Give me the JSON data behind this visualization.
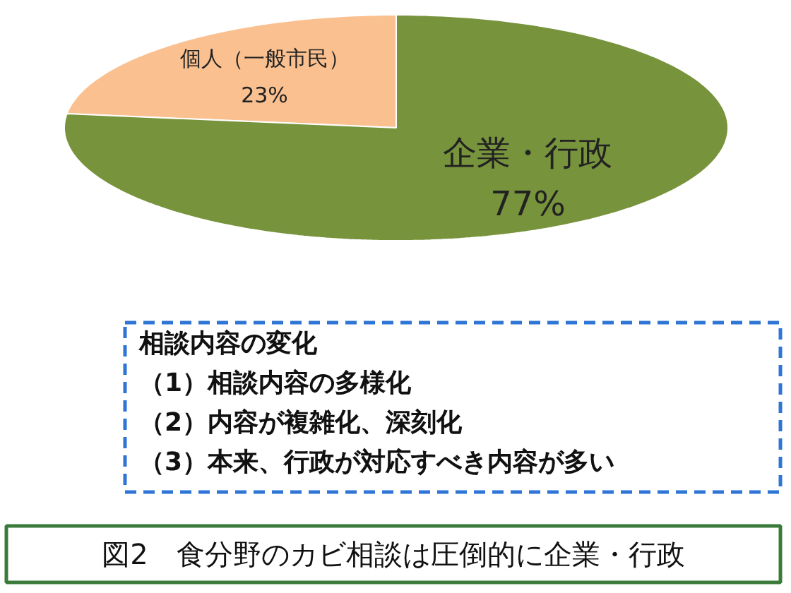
{
  "chart_data": {
    "type": "pie",
    "title": "図2　食分野のカビ相談は圧倒的に企業・行政",
    "categories": [
      "個人（一般市民）",
      "企業・行政"
    ],
    "values": [
      23,
      77
    ],
    "colors": [
      "#fac090",
      "#77933c"
    ],
    "value_labels": [
      "23%",
      "77%"
    ],
    "annotations": [
      "相談内容の変化",
      "（1）相談内容の多様化",
      "（2）内容が複雑化、深刻化",
      "（3）本来、行政が対応すべき内容が多い"
    ]
  }
}
